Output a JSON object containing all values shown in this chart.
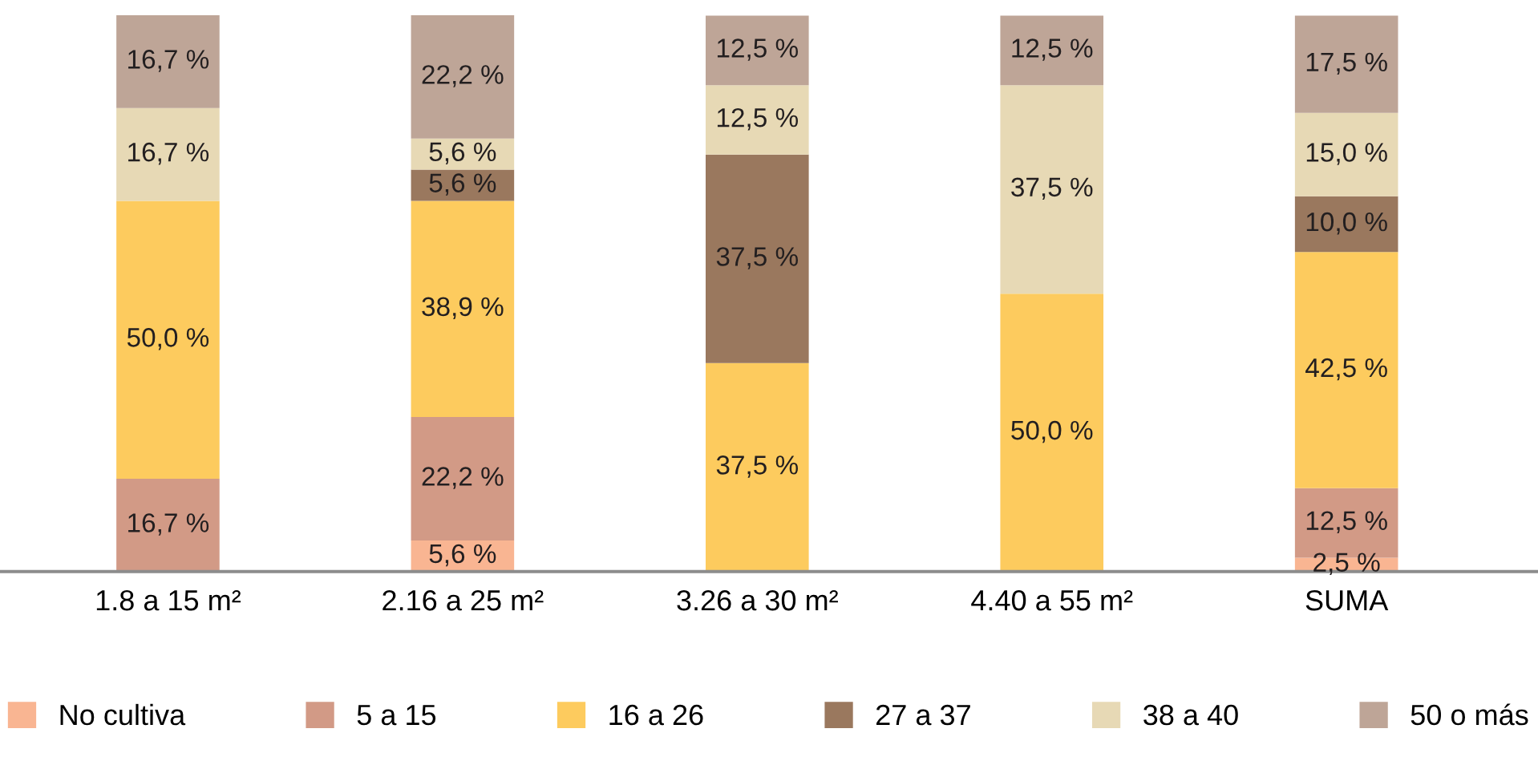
{
  "chart_data": {
    "type": "bar",
    "stacked": true,
    "categories": [
      "1.8 a 15 m²",
      "2.16 a 25 m²",
      "3.26 a 30 m²",
      "4.40 a 55 m²",
      "SUMA"
    ],
    "series": [
      {
        "name": "No cultiva",
        "color": "#f9b592",
        "values": [
          0,
          5.6,
          0,
          0,
          2.5
        ],
        "value_labels": [
          null,
          "5,6 %",
          null,
          null,
          "2,5 %"
        ]
      },
      {
        "name": "5 a 15",
        "color": "#d29a86",
        "values": [
          16.7,
          22.2,
          0,
          0,
          12.5
        ],
        "value_labels": [
          "16,7 %",
          "22,2 %",
          null,
          null,
          "12,5 %"
        ]
      },
      {
        "name": "16 a 26",
        "color": "#fdcb5e",
        "values": [
          50.0,
          38.9,
          37.5,
          50.0,
          42.5
        ],
        "value_labels": [
          "50,0 %",
          "38,9 %",
          "37,5 %",
          "50,0 %",
          "42,5 %"
        ]
      },
      {
        "name": "27 a 37",
        "color": "#9a785e",
        "values": [
          0,
          5.6,
          37.5,
          0,
          10.0
        ],
        "value_labels": [
          null,
          "5,6 %",
          "37,5 %",
          null,
          "10,0 %"
        ]
      },
      {
        "name": "38 a 40",
        "color": "#e7d9b5",
        "values": [
          16.7,
          5.6,
          12.5,
          37.5,
          15.0
        ],
        "value_labels": [
          "16,7 %",
          "5,6 %",
          "12,5 %",
          "37,5 %",
          "15,0 %"
        ]
      },
      {
        "name": "50 o más",
        "color": "#bea597",
        "values": [
          16.7,
          22.2,
          12.5,
          12.5,
          17.5
        ],
        "value_labels": [
          "16,7 %",
          "22,2 %",
          "12,5 %",
          "12,5 %",
          "17,5 %"
        ]
      }
    ],
    "legend": "bottom",
    "grid": false
  }
}
